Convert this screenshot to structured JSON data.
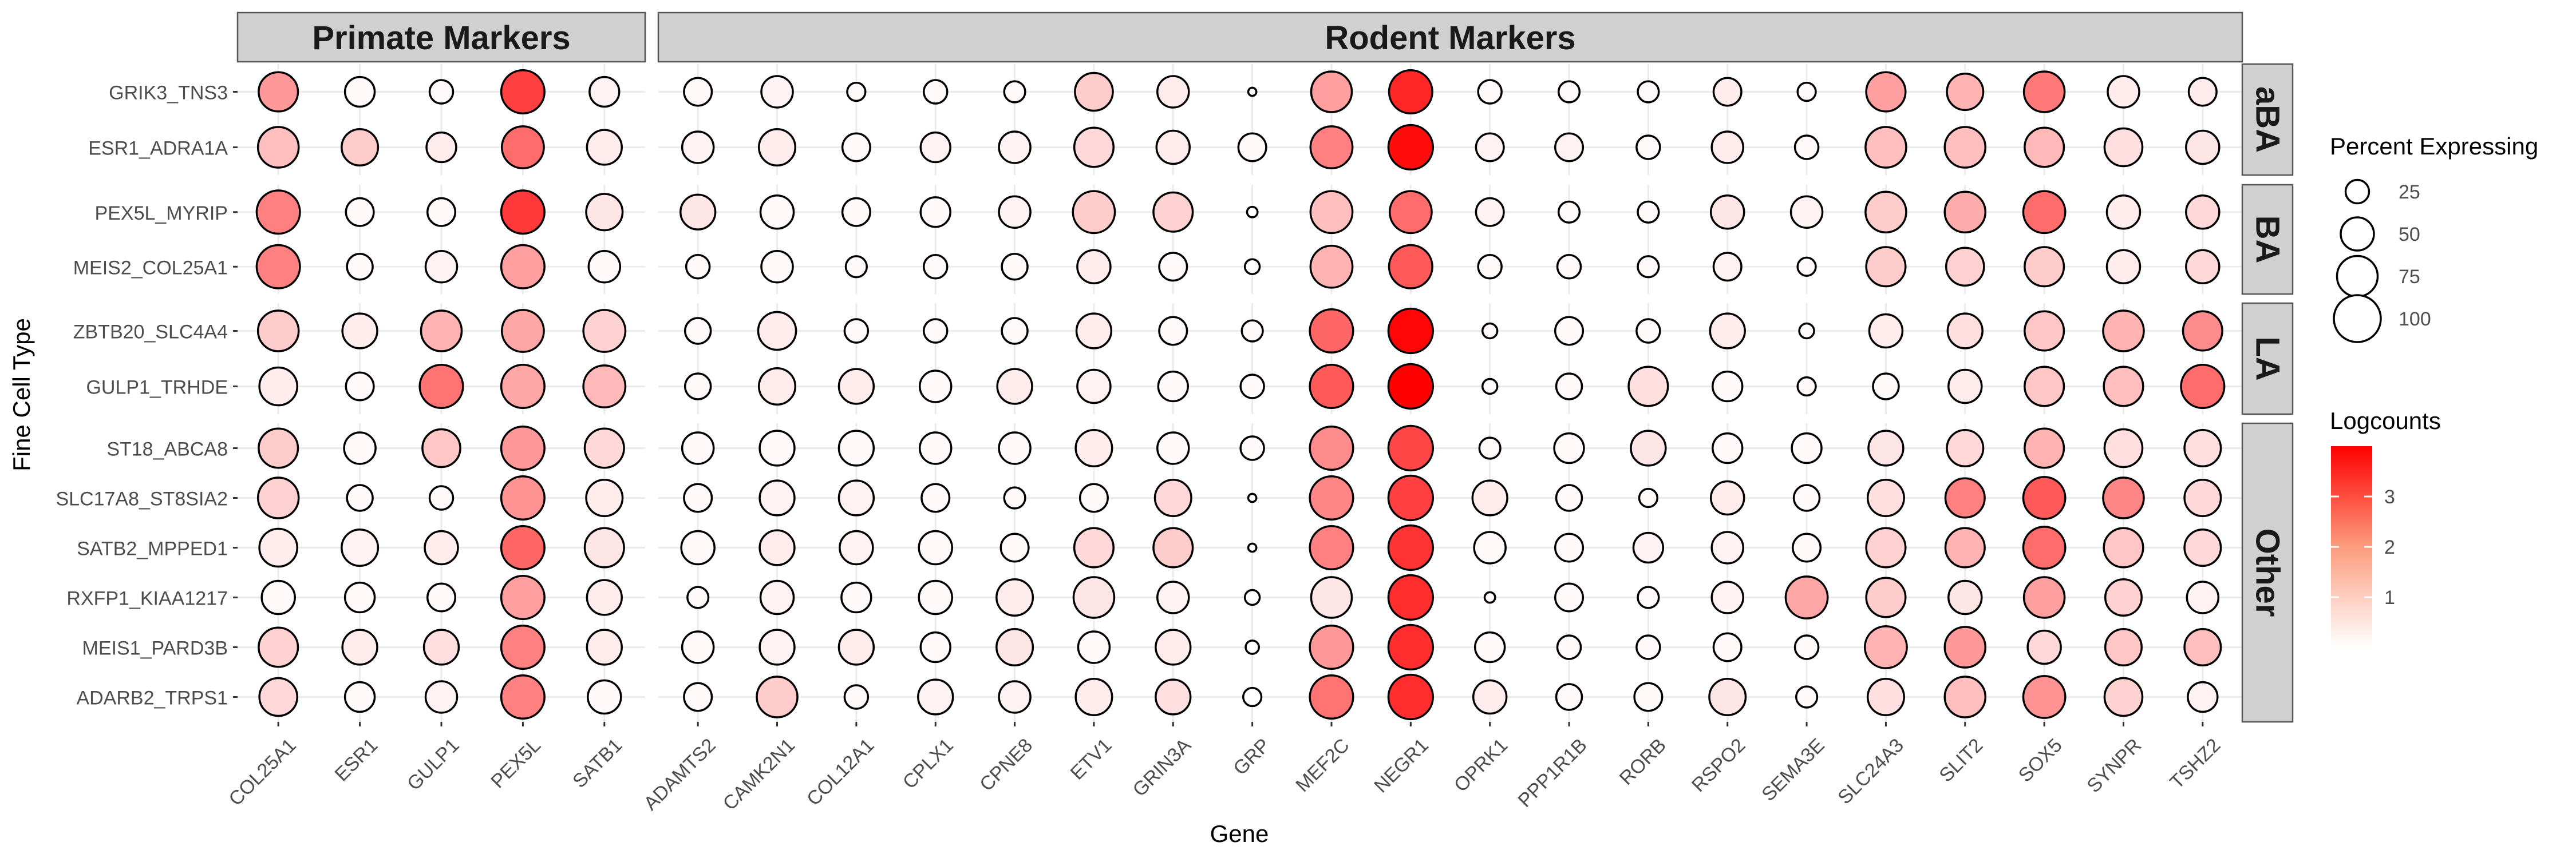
{
  "chart_data": {
    "type": "dot",
    "xlabel": "Gene",
    "ylabel": "Fine Cell Type",
    "column_groups": [
      {
        "label": "Primate Markers",
        "genes": [
          "COL25A1",
          "ESR1",
          "GULP1",
          "PEX5L",
          "SATB1"
        ]
      },
      {
        "label": "Rodent Markers",
        "genes": [
          "ADAMTS2",
          "CAMK2N1",
          "COL12A1",
          "CPLX1",
          "CPNE8",
          "ETV1",
          "GRIN3A",
          "GRP",
          "MEF2C",
          "NEGR1",
          "OPRK1",
          "PPP1R1B",
          "RORB",
          "RSPO2",
          "SEMA3E",
          "SLC24A3",
          "SLIT2",
          "SOX5",
          "SYNPR",
          "TSHZ2"
        ]
      }
    ],
    "row_groups": [
      {
        "label": "aBA",
        "cell_types": [
          "GRIK3_TNS3",
          "ESR1_ADRA1A"
        ]
      },
      {
        "label": "BA",
        "cell_types": [
          "PEX5L_MYRIP",
          "MEIS2_COL25A1"
        ]
      },
      {
        "label": "LA",
        "cell_types": [
          "ZBTB20_SLC4A4",
          "GULP1_TRHDE"
        ]
      },
      {
        "label": "Other",
        "cell_types": [
          "ST18_ABCA8",
          "SLC17A8_ST8SIA2",
          "SATB2_MPPED1",
          "RXFP1_KIAA1217",
          "MEIS1_PARD3B",
          "ADARB2_TRPS1"
        ]
      }
    ],
    "percent_expressing": {
      "GRIK3_TNS3": [
        70,
        40,
        25,
        85,
        40,
        35,
        45,
        15,
        25,
        20,
        65,
        45,
        3,
        75,
        85,
        25,
        20,
        20,
        35,
        15,
        70,
        60,
        75,
        45,
        35
      ],
      "ESR1_ADRA1A": [
        75,
        60,
        40,
        80,
        55,
        45,
        60,
        35,
        40,
        45,
        70,
        50,
        35,
        80,
        90,
        35,
        35,
        25,
        45,
        25,
        75,
        75,
        70,
        65,
        50
      ],
      "PEX5L_MYRIP": [
        85,
        35,
        35,
        85,
        60,
        55,
        50,
        35,
        40,
        45,
        80,
        70,
        5,
        80,
        80,
        35,
        20,
        20,
        50,
        45,
        75,
        75,
        80,
        50,
        50
      ],
      "MEIS2_COL25A1": [
        85,
        30,
        45,
        85,
        45,
        25,
        45,
        20,
        25,
        30,
        50,
        35,
        10,
        80,
        85,
        25,
        25,
        20,
        35,
        15,
        70,
        65,
        70,
        50,
        50
      ],
      "ZBTB20_SLC4A4": [
        75,
        55,
        75,
        80,
        80,
        30,
        65,
        25,
        25,
        30,
        55,
        35,
        20,
        85,
        90,
        10,
        35,
        25,
        55,
        10,
        50,
        55,
        70,
        75,
        70
      ],
      "GULP1_TRHDE": [
        65,
        35,
        85,
        85,
        80,
        30,
        60,
        55,
        45,
        55,
        50,
        40,
        25,
        85,
        90,
        10,
        30,
        70,
        40,
        15,
        30,
        50,
        70,
        70,
        85
      ],
      "ST18_ABCA8": [
        70,
        45,
        65,
        85,
        70,
        45,
        55,
        55,
        45,
        45,
        60,
        45,
        25,
        85,
        90,
        20,
        40,
        55,
        40,
        40,
        55,
        60,
        70,
        65,
        60
      ],
      "SLC17A8_ST8SIA2": [
        75,
        30,
        25,
        85,
        60,
        35,
        55,
        55,
        35,
        20,
        35,
        60,
        3,
        85,
        90,
        55,
        30,
        15,
        50,
        30,
        60,
        70,
        80,
        75,
        60
      ],
      "SATB2_MPPED1": [
        65,
        60,
        50,
        85,
        70,
        50,
        55,
        50,
        50,
        35,
        70,
        70,
        3,
        85,
        90,
        45,
        35,
        40,
        45,
        35,
        70,
        70,
        80,
        70,
        60
      ],
      "RXFP1_KIAA1217": [
        50,
        40,
        35,
        85,
        55,
        20,
        50,
        40,
        50,
        60,
        75,
        45,
        10,
        75,
        90,
        5,
        35,
        20,
        45,
        80,
        70,
        50,
        75,
        60,
        45
      ],
      "MEIS1_PARD3B": [
        70,
        55,
        55,
        85,
        55,
        45,
        55,
        55,
        40,
        60,
        45,
        55,
        8,
        85,
        90,
        40,
        25,
        25,
        35,
        25,
        80,
        75,
        50,
        60,
        60
      ],
      "ADARB2_TRPS1": [
        65,
        40,
        45,
        85,
        50,
        35,
        75,
        25,
        55,
        45,
        60,
        55,
        15,
        85,
        90,
        50,
        30,
        35,
        60,
        20,
        60,
        75,
        80,
        65,
        40
      ]
    },
    "logcounts": {
      "GRIK3_TNS3": [
        1.6,
        0.1,
        0.1,
        3.0,
        0.2,
        0.1,
        0.2,
        0.1,
        0.1,
        0.1,
        0.8,
        0.3,
        0,
        1.5,
        3.4,
        0.1,
        0.1,
        0.1,
        0.3,
        0.1,
        1.5,
        1.2,
        2.1,
        0.3,
        0.3
      ],
      "ESR1_ADRA1A": [
        1.0,
        0.8,
        0.3,
        2.3,
        0.3,
        0.2,
        0.3,
        0.1,
        0.2,
        0.2,
        0.6,
        0.3,
        0.1,
        2.0,
        3.8,
        0.2,
        0.2,
        0.1,
        0.3,
        0.1,
        1.0,
        1.0,
        1.1,
        0.5,
        0.4
      ],
      "PEX5L_MYRIP": [
        2.0,
        0.1,
        0.1,
        3.1,
        0.4,
        0.4,
        0.1,
        0.1,
        0.1,
        0.2,
        0.8,
        0.7,
        0,
        1.0,
        2.3,
        0.2,
        0.1,
        0.1,
        0.4,
        0.2,
        0.8,
        1.3,
        2.3,
        0.3,
        0.6
      ],
      "MEIS2_COL25A1": [
        2.0,
        0.1,
        0.2,
        1.5,
        0.1,
        0.1,
        0.1,
        0.1,
        0.1,
        0.1,
        0.3,
        0.1,
        0,
        1.2,
        2.6,
        0.1,
        0.1,
        0.1,
        0.2,
        0.1,
        0.8,
        0.7,
        0.8,
        0.3,
        0.6
      ],
      "ZBTB20_SLC4A4": [
        0.8,
        0.3,
        1.2,
        1.4,
        0.7,
        0.1,
        0.3,
        0.1,
        0.1,
        0.1,
        0.3,
        0.1,
        0.1,
        2.4,
        3.9,
        0.1,
        0.1,
        0.1,
        0.3,
        0.1,
        0.3,
        0.5,
        0.9,
        1.2,
        1.8
      ],
      "GULP1_TRHDE": [
        0.3,
        0.1,
        2.2,
        1.4,
        1.1,
        0.1,
        0.3,
        0.3,
        0.1,
        0.3,
        0.2,
        0.1,
        0.1,
        2.6,
        4.0,
        0.1,
        0.1,
        0.5,
        0.1,
        0.1,
        0.1,
        0.3,
        0.9,
        1.0,
        2.3
      ],
      "ST18_ABCA8": [
        0.8,
        0.1,
        0.9,
        1.6,
        0.6,
        0.1,
        0.1,
        0.1,
        0.1,
        0.1,
        0.3,
        0.1,
        0.1,
        1.8,
        2.9,
        0.1,
        0.1,
        0.4,
        0.1,
        0.1,
        0.4,
        0.6,
        1.2,
        0.5,
        0.5
      ],
      "SLC17A8_ST8SIA2": [
        0.7,
        0.1,
        0.1,
        1.7,
        0.3,
        0.1,
        0.2,
        0.2,
        0.1,
        0.1,
        0.1,
        0.6,
        0,
        1.9,
        3.0,
        0.3,
        0.1,
        0.1,
        0.3,
        0.1,
        0.5,
        2.0,
        2.6,
        1.9,
        0.6
      ],
      "SATB2_MPPED1": [
        0.3,
        0.2,
        0.3,
        2.4,
        0.4,
        0.1,
        0.3,
        0.2,
        0.1,
        0.1,
        0.6,
        0.8,
        0,
        2.0,
        3.2,
        0.1,
        0.1,
        0.2,
        0.2,
        0.1,
        0.7,
        1.2,
        2.3,
        0.9,
        0.6
      ],
      "RXFP1_KIAA1217": [
        0.1,
        0.1,
        0.1,
        1.5,
        0.3,
        0.1,
        0.2,
        0.1,
        0.1,
        0.3,
        0.4,
        0.2,
        0,
        0.4,
        3.3,
        0.1,
        0.1,
        0.1,
        0.2,
        1.4,
        0.8,
        0.4,
        1.5,
        0.7,
        0.2
      ],
      "MEIS1_PARD3B": [
        0.7,
        0.3,
        0.5,
        2.0,
        0.3,
        0.1,
        0.2,
        0.3,
        0.1,
        0.4,
        0.1,
        0.3,
        0,
        1.6,
        3.3,
        0.1,
        0.1,
        0.1,
        0.1,
        0.1,
        1.2,
        1.6,
        0.6,
        0.9,
        1.0
      ],
      "ADARB2_TRPS1": [
        0.6,
        0.1,
        0.2,
        2.0,
        0.1,
        0.1,
        0.8,
        0.1,
        0.2,
        0.2,
        0.3,
        0.5,
        0,
        2.2,
        3.3,
        0.3,
        0.1,
        0.1,
        0.4,
        0.1,
        0.5,
        1.0,
        1.7,
        0.7,
        0.2
      ]
    },
    "size_legend": {
      "title": "Percent Expressing",
      "breaks": [
        25,
        50,
        75,
        100
      ]
    },
    "color_legend": {
      "title": "Logcounts",
      "breaks": [
        1,
        2,
        3
      ],
      "low_color": "#ffffff",
      "high_color": "#ff0000",
      "limits": [
        0,
        4
      ]
    },
    "grid": true,
    "legend_position": "right"
  }
}
